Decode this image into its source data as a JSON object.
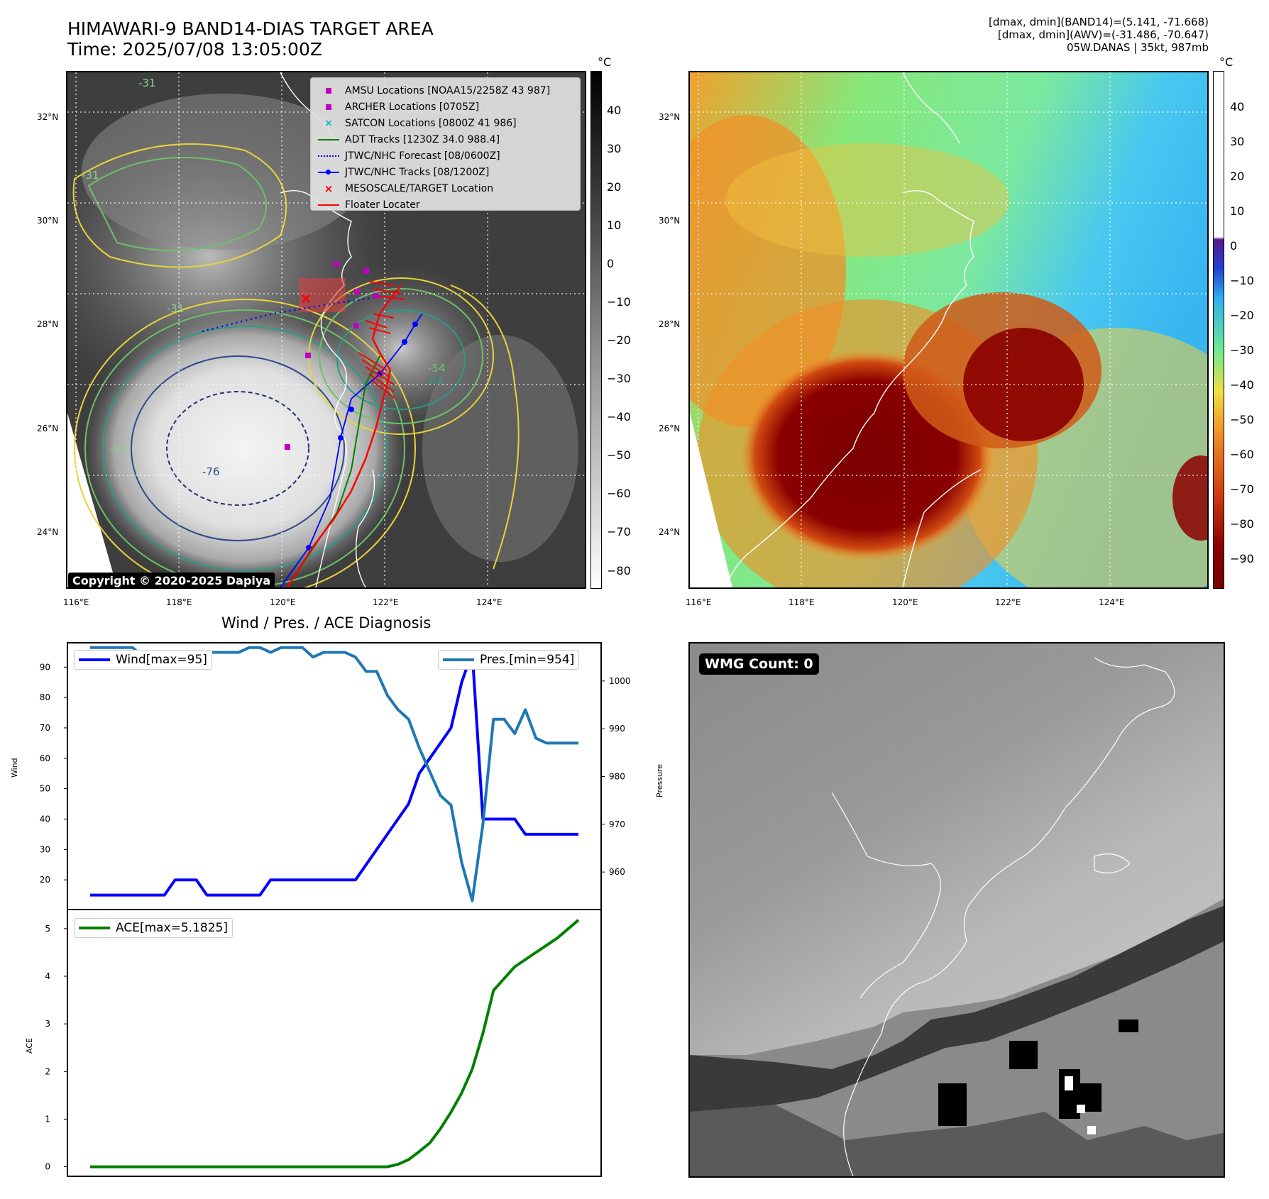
{
  "header": {
    "title_line1": "HIMAWARI-9 BAND14-DIAS TARGET AREA",
    "title_line2": "Time: 2025/07/08 13:05:00Z",
    "right_line1": "[dmax, dmin](BAND14)=(5.141, -71.668)",
    "right_line2": "[dmax, dmin](AWV)=(-31.486, -70.647)",
    "right_line3": "05W.DANAS | 35kt, 987mb"
  },
  "map_ticks": {
    "lat": [
      "32°N",
      "30°N",
      "28°N",
      "26°N",
      "24°N"
    ],
    "lon": [
      "116°E",
      "118°E",
      "120°E",
      "122°E",
      "124°E"
    ]
  },
  "colorbar_ir": {
    "unit": "°C",
    "ticks": [
      "40",
      "30",
      "20",
      "10",
      "0",
      "−10",
      "−20",
      "−30",
      "−40",
      "−50",
      "−60",
      "−70",
      "−80"
    ]
  },
  "colorbar_wv": {
    "unit": "°C",
    "ticks": [
      "40",
      "30",
      "20",
      "10",
      "0",
      "−10",
      "−20",
      "−30",
      "−40",
      "−50",
      "−60",
      "−70",
      "−80",
      "−90"
    ]
  },
  "legend": {
    "items": [
      {
        "label": "AMSU Locations [NOAA15/2258Z 43 987]",
        "color": "#bf00bf",
        "marker": "square"
      },
      {
        "label": "ARCHER Locations [0705Z]",
        "color": "#bf00bf",
        "marker": "square"
      },
      {
        "label": "SATCON Locations [0800Z 41 986]",
        "color": "#00bfbf",
        "marker": "x"
      },
      {
        "label": "ADT Tracks [1230Z 34.0 988.4]",
        "color": "#008000",
        "marker": "line"
      },
      {
        "label": "JTWC/NHC Forecast [08/0600Z]",
        "color": "#0000ff",
        "marker": "dotted"
      },
      {
        "label": "JTWC/NHC Tracks [08/1200Z]",
        "color": "#0000ff",
        "marker": "line-dot"
      },
      {
        "label": "MESOSCALE/TARGET Location",
        "color": "#ff0000",
        "marker": "x"
      },
      {
        "label": "Floater Locater",
        "color": "#ff0000",
        "marker": "line"
      }
    ]
  },
  "contour_labels": [
    "-31",
    "-31",
    "-54",
    "-64",
    "-76",
    "-31",
    "-31"
  ],
  "copyright": "Copyright © 2020-2025 Dapiya",
  "wmg_label": "WMG Count: 0",
  "chart_data": [
    {
      "type": "line",
      "title": "Wind / Pres. / ACE Diagnosis",
      "ylabel": "Wind",
      "ylabel_right": "Pressure",
      "ylim": [
        10,
        98
      ],
      "ylim_right": [
        952,
        1008
      ],
      "yticks": [
        20,
        30,
        40,
        50,
        60,
        70,
        80,
        90
      ],
      "yticks_right": [
        960,
        970,
        980,
        990,
        1000
      ],
      "x": [
        0,
        1,
        2,
        3,
        4,
        5,
        6,
        7,
        8,
        9,
        10,
        11,
        12,
        13,
        14,
        15,
        16,
        17,
        18,
        19,
        20,
        21,
        22,
        23,
        24,
        25,
        26,
        27,
        28,
        29,
        30,
        31,
        32,
        33,
        34,
        35,
        36,
        37,
        38,
        39,
        40,
        41,
        42,
        43,
        44,
        45,
        46
      ],
      "series": [
        {
          "name": "Wind[max=95]",
          "color": "#0000ff",
          "values": [
            15,
            15,
            15,
            15,
            15,
            15,
            15,
            15,
            20,
            20,
            20,
            15,
            15,
            15,
            15,
            15,
            15,
            20,
            20,
            20,
            20,
            20,
            20,
            20,
            20,
            20,
            25,
            30,
            35,
            40,
            45,
            55,
            60,
            65,
            70,
            85,
            95,
            40,
            40,
            40,
            40,
            35,
            35,
            35,
            35,
            35,
            35
          ]
        },
        {
          "name": "Pres.[min=954]",
          "color": "#1f77b4",
          "values": [
            1007,
            1007,
            1007,
            1007,
            1007,
            1005,
            1005,
            1005,
            1005,
            1005,
            1006,
            1006,
            1006,
            1006,
            1006,
            1007,
            1007,
            1006,
            1007,
            1007,
            1007,
            1005,
            1006,
            1006,
            1006,
            1005,
            1002,
            1002,
            997,
            994,
            992,
            986,
            981,
            976,
            974,
            962,
            954,
            970,
            992,
            992,
            989,
            994,
            988,
            987,
            987,
            987,
            987
          ]
        }
      ]
    },
    {
      "type": "line",
      "ylabel": "ACE",
      "ylim": [
        -0.2,
        5.4
      ],
      "yticks": [
        0,
        1,
        2,
        3,
        4,
        5
      ],
      "x": [
        0,
        2,
        4,
        6,
        8,
        10,
        12,
        14,
        16,
        18,
        20,
        22,
        24,
        26,
        28,
        29,
        30,
        31,
        32,
        33,
        34,
        35,
        36,
        37,
        38,
        40,
        42,
        44,
        46
      ],
      "series": [
        {
          "name": "ACE[max=5.1825]",
          "color": "#008000",
          "values": [
            0,
            0,
            0,
            0,
            0,
            0,
            0,
            0,
            0,
            0,
            0,
            0,
            0,
            0,
            0,
            0.05,
            0.15,
            0.32,
            0.5,
            0.8,
            1.15,
            1.55,
            2.05,
            2.8,
            3.7,
            4.2,
            4.5,
            4.8,
            5.18
          ]
        }
      ]
    }
  ]
}
